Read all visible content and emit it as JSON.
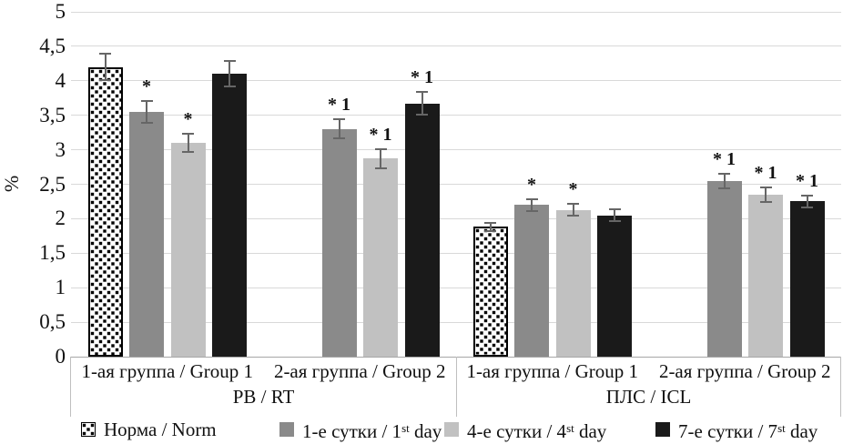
{
  "chart_data": {
    "type": "bar",
    "title": "",
    "ylabel": "%",
    "ylim": [
      0,
      5
    ],
    "ytick_step": 0.5,
    "ytick_labels": [
      "0",
      "0,5",
      "1",
      "1,5",
      "2",
      "2,5",
      "3",
      "3,5",
      "4",
      "4,5",
      "5"
    ],
    "grid": true,
    "legend_position": "bottom",
    "error_bars": true,
    "series": [
      {
        "name": "Норма / Norm",
        "fill": "dots-pattern",
        "pattern_fg": "#000000",
        "pattern_bg": "#ffffff"
      },
      {
        "name": "1-е сутки / 1st day",
        "color": "#8a8a8a"
      },
      {
        "name": "4-е сутки / 4st day",
        "color": "#c1c1c1"
      },
      {
        "name": "7-е сутки / 7st day",
        "color": "#1a1a1a"
      }
    ],
    "level1_groups": [
      {
        "label": "РВ / RT",
        "groups": [
          {
            "label": "1-ая группа / Group 1",
            "values": [
              4.2,
              3.55,
              3.1,
              4.1
            ],
            "errors": [
              0.2,
              0.17,
              0.15,
              0.2
            ],
            "annotations": [
              "",
              "*",
              "*",
              ""
            ]
          },
          {
            "label": "2-ая группа / Group 2",
            "values": [
              null,
              3.3,
              2.87,
              3.67
            ],
            "errors": [
              null,
              0.15,
              0.15,
              0.18
            ],
            "annotations": [
              "",
              "* 1",
              "* 1",
              "* 1"
            ]
          }
        ]
      },
      {
        "label": "ПЛС / ICL",
        "groups": [
          {
            "label": "1-ая группа / Group 1",
            "values": [
              1.88,
              2.2,
              2.13,
              2.05
            ],
            "errors": [
              0.07,
              0.1,
              0.1,
              0.1
            ],
            "annotations": [
              "",
              "*",
              "*",
              ""
            ]
          },
          {
            "label": "2-ая группа / Group 2",
            "values": [
              null,
              2.55,
              2.35,
              2.25
            ],
            "errors": [
              null,
              0.12,
              0.12,
              0.1
            ],
            "annotations": [
              "",
              "* 1",
              "* 1",
              "* 1"
            ]
          }
        ]
      }
    ]
  },
  "legend": {
    "items": [
      {
        "swatch": "pattern",
        "parts": [
          {
            "text": "Норма / Norm"
          }
        ]
      },
      {
        "swatch": "#8a8a8a",
        "parts": [
          {
            "text": "1-е сутки / 1"
          },
          {
            "text": "st",
            "sup": true
          },
          {
            "text": " day"
          }
        ]
      },
      {
        "swatch": "#c1c1c1",
        "parts": [
          {
            "text": "4-е сутки / 4"
          },
          {
            "text": "st",
            "sup": true
          },
          {
            "text": " day"
          }
        ]
      },
      {
        "swatch": "#1a1a1a",
        "parts": [
          {
            "text": "7-е сутки / 7"
          },
          {
            "text": "st",
            "sup": true
          },
          {
            "text": " day"
          }
        ]
      }
    ]
  }
}
